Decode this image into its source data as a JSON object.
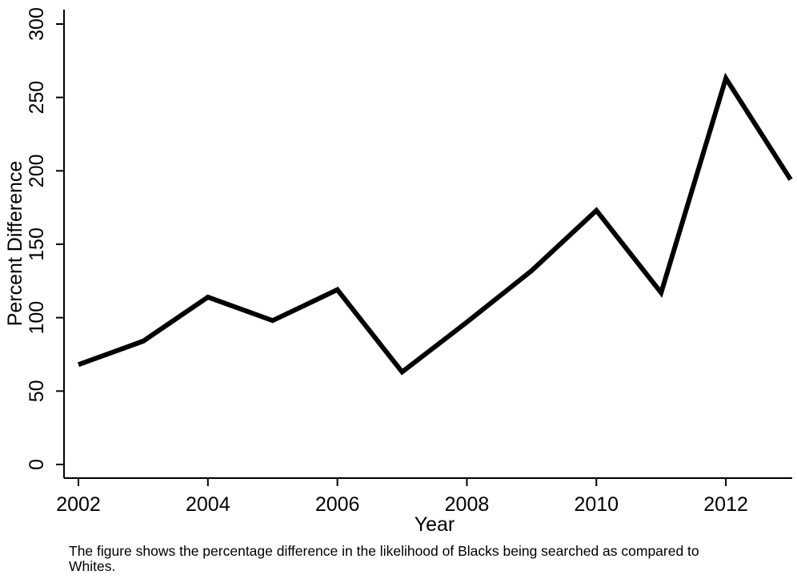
{
  "chart_data": {
    "type": "line",
    "title": "",
    "xlabel": "Year",
    "ylabel": "Percent Difference",
    "x": [
      2002,
      2003,
      2004,
      2005,
      2006,
      2007,
      2008,
      2009,
      2010,
      2011,
      2012,
      2013
    ],
    "series": [
      {
        "values": [
          68,
          84,
          114,
          98,
          119,
          63,
          97,
          132,
          173,
          117,
          263,
          194
        ]
      }
    ],
    "xlim": [
      2002,
      2013
    ],
    "ylim": [
      0,
      300
    ],
    "xticks": [
      "2002",
      "2004",
      "2006",
      "2008",
      "2010",
      "2012"
    ],
    "yticks": [
      "0",
      "50",
      "100",
      "150",
      "200",
      "250",
      "300"
    ],
    "grid": false,
    "line_color": "#000000"
  },
  "caption": "The figure shows the percentage difference in the likelihood of Blacks being searched as compared to Whites."
}
